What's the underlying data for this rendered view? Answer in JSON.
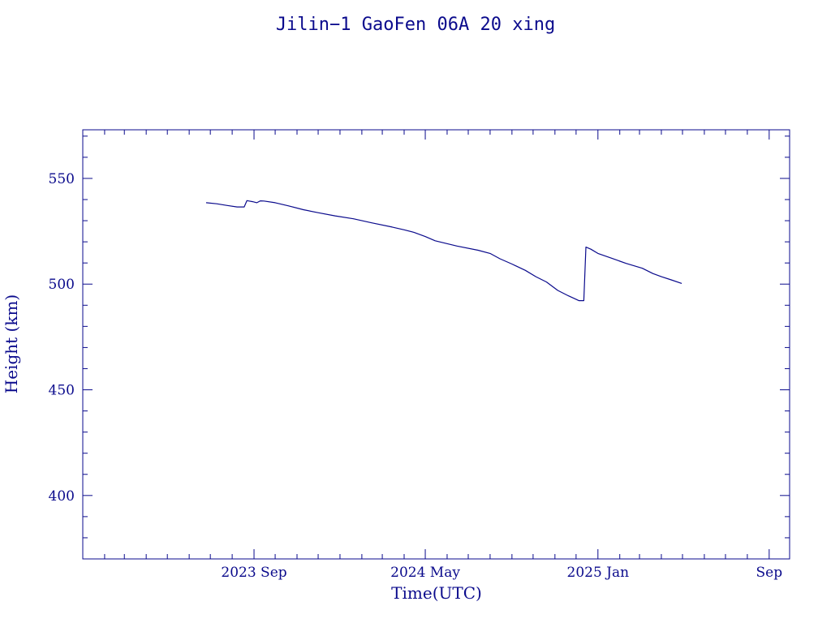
{
  "chart_data": {
    "type": "line",
    "title": "Jilin−1 GaoFen 06A 20 xing",
    "xlabel": "Time(UTC)",
    "ylabel": "Height (km)",
    "ylim": [
      370,
      573
    ],
    "xlim": [
      "2023-01-01",
      "2025-09-30"
    ],
    "x_major_ticks": [
      {
        "date": "2023-09-01",
        "label": "2023 Sep"
      },
      {
        "date": "2024-05-01",
        "label": "2024 May"
      },
      {
        "date": "2025-01-01",
        "label": "2025 Jan"
      },
      {
        "date": "2025-09-01",
        "label": "Sep"
      }
    ],
    "x_minor_ticks": [
      "2023-02-01",
      "2023-03-01",
      "2023-04-01",
      "2023-05-01",
      "2023-06-01",
      "2023-07-01",
      "2023-08-01",
      "2023-10-01",
      "2023-11-01",
      "2023-12-01",
      "2024-01-01",
      "2024-02-01",
      "2024-03-01",
      "2024-04-01",
      "2024-06-01",
      "2024-07-01",
      "2024-08-01",
      "2024-09-01",
      "2024-10-01",
      "2024-11-01",
      "2024-12-01",
      "2025-02-01",
      "2025-03-01",
      "2025-04-01",
      "2025-05-01",
      "2025-06-01",
      "2025-07-01",
      "2025-08-01"
    ],
    "y_major_ticks": [
      400,
      450,
      500,
      550
    ],
    "y_minor_step": 10,
    "grid": false,
    "colors": {
      "axis": "#0a0a8c",
      "series": "#0a0a8c"
    },
    "series": [
      {
        "x": [
          "2023-06-25",
          "2023-07-10",
          "2023-07-25",
          "2023-08-08",
          "2023-08-18",
          "2023-08-22",
          "2023-08-25",
          "2023-08-30",
          "2023-09-05",
          "2023-09-10",
          "2023-09-15",
          "2023-10-01",
          "2023-10-20",
          "2023-11-10",
          "2023-12-01",
          "2023-12-25",
          "2024-01-20",
          "2024-02-15",
          "2024-03-15",
          "2024-04-01",
          "2024-04-15",
          "2024-05-01",
          "2024-05-15",
          "2024-06-15",
          "2024-07-15",
          "2024-08-01",
          "2024-08-15",
          "2024-09-01",
          "2024-09-20",
          "2024-10-05",
          "2024-10-20",
          "2024-11-05",
          "2024-11-20",
          "2024-12-05",
          "2024-12-12",
          "2024-12-15",
          "2024-12-22",
          "2025-01-01",
          "2025-01-20",
          "2025-02-10",
          "2025-03-05",
          "2025-03-20",
          "2025-04-01",
          "2025-04-15",
          "2025-04-30"
        ],
        "y": [
          538.5,
          538,
          537.2,
          536.5,
          536.5,
          539.5,
          539.3,
          539,
          538.5,
          539.4,
          539.3,
          538.5,
          537,
          535.2,
          533.8,
          532.3,
          530.9,
          529,
          527,
          525.7,
          524.5,
          522.5,
          520.5,
          518,
          516,
          514.5,
          512,
          509.5,
          506.5,
          503.5,
          501,
          497,
          494.5,
          492.2,
          492.2,
          517.5,
          516.5,
          514.5,
          512.3,
          509.8,
          507.5,
          505,
          503.5,
          502,
          500.3
        ]
      }
    ]
  }
}
